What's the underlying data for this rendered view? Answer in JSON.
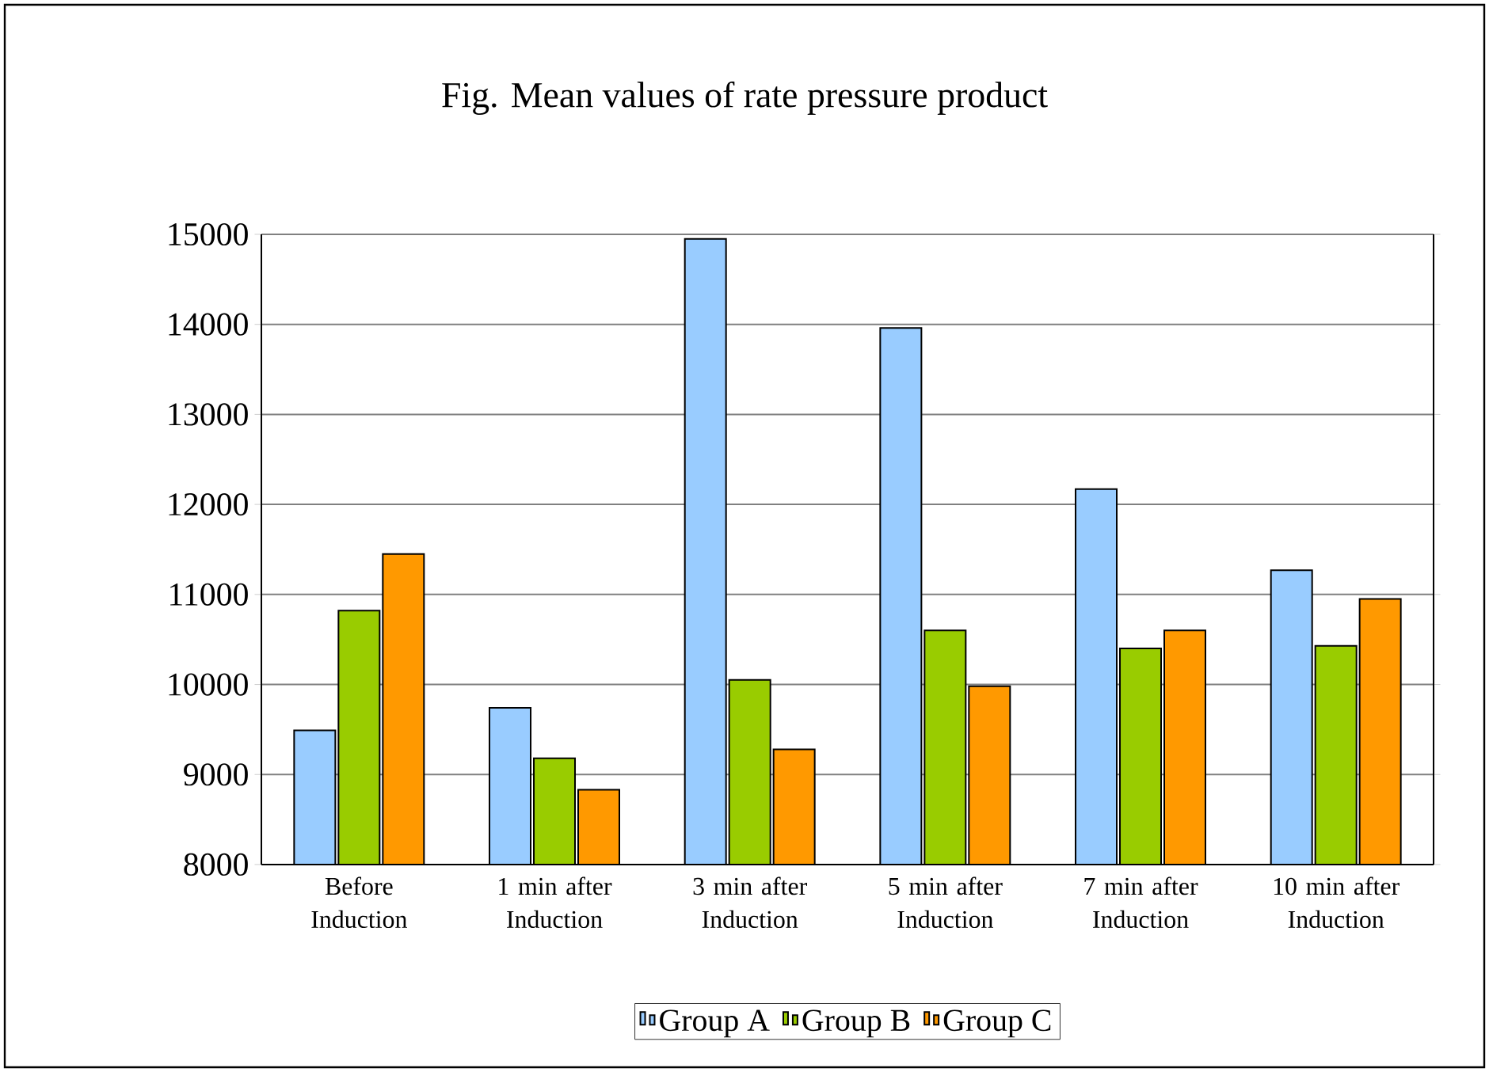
{
  "chart_data": {
    "type": "bar",
    "title": "Fig. Mean values of rate pressure product",
    "categories": [
      "Before Induction",
      "1 min after Induction",
      "3 min after Induction",
      "5 min after Induction",
      "7 min after Induction",
      "10 min after Induction"
    ],
    "series": [
      {
        "name": "Group A",
        "color": "#99ccff",
        "values": [
          9490,
          9740,
          14950,
          13960,
          12170,
          11270
        ]
      },
      {
        "name": "Group B",
        "color": "#99cc00",
        "values": [
          10820,
          9180,
          10050,
          10600,
          10400,
          10430
        ]
      },
      {
        "name": "Group C",
        "color": "#ff9900",
        "values": [
          11450,
          8830,
          9280,
          9980,
          10600,
          10950
        ]
      }
    ],
    "ylim": [
      8000,
      15000
    ],
    "yticks": [
      8000,
      9000,
      10000,
      11000,
      12000,
      13000,
      14000,
      15000
    ],
    "grid": "y",
    "legend": "bottom"
  }
}
